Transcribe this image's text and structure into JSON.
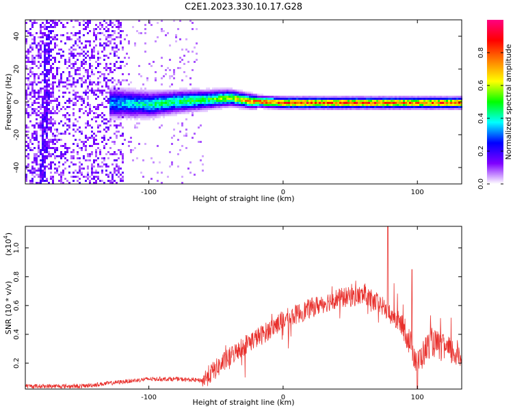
{
  "title": "C2E1.2023.330.10.17.G28",
  "chart_data": [
    {
      "type": "heatmap",
      "name": "spectrogram",
      "xlabel": "Height of straight line (km)",
      "ylabel": "Frequency (Hz)",
      "xlim": [
        -192,
        133
      ],
      "ylim": [
        -50,
        50
      ],
      "xticks": [
        -100,
        0,
        100
      ],
      "yticks": [
        -40,
        -20,
        0,
        20,
        40
      ],
      "colorbar": {
        "label": "Normalized spectral amplitude",
        "range": [
          0,
          1
        ],
        "ticks": [
          "0.0",
          "0.2",
          "0.4",
          "0.6",
          "0.8"
        ],
        "colormap": [
          "#ffffff",
          "#7f00ff",
          "#0000ff",
          "#00ffff",
          "#00ff00",
          "#ffff00",
          "#ff8000",
          "#ff0000",
          "#ff0080"
        ]
      },
      "ridge": [
        {
          "x": -130,
          "freq": 0,
          "amp": 0.35
        },
        {
          "x": -100,
          "freq": -1,
          "amp": 0.45
        },
        {
          "x": -75,
          "freq": 1,
          "amp": 0.5
        },
        {
          "x": -55,
          "freq": 2,
          "amp": 0.55
        },
        {
          "x": -40,
          "freq": 3,
          "amp": 0.65
        },
        {
          "x": -25,
          "freq": 1,
          "amp": 0.8
        },
        {
          "x": 0,
          "freq": 0,
          "amp": 0.9
        },
        {
          "x": 50,
          "freq": 0,
          "amp": 0.9
        },
        {
          "x": 100,
          "freq": 0,
          "amp": 0.85
        },
        {
          "x": 133,
          "freq": 0,
          "amp": 0.9
        }
      ]
    },
    {
      "type": "line",
      "name": "snr",
      "xlabel": "Height of straight line (km)",
      "ylabel": "SNR (10 * v/v)",
      "scale_label": "(x10",
      "scale_exp": "4",
      "scale_close": ")",
      "xlim": [
        -192,
        133
      ],
      "ylim": [
        0.02,
        1.15
      ],
      "xticks": [
        -100,
        0,
        100
      ],
      "yticks": [
        "0.2",
        "0.4",
        "0.6",
        "0.8",
        "1.0"
      ],
      "line_color": "#e8302c",
      "trend": {
        "x": [
          -192,
          -150,
          -120,
          -100,
          -80,
          -60,
          -45,
          -30,
          -15,
          0,
          20,
          40,
          60,
          70,
          80,
          90,
          100,
          110,
          120,
          133
        ],
        "y": [
          0.04,
          0.04,
          0.07,
          0.09,
          0.09,
          0.08,
          0.2,
          0.32,
          0.4,
          0.5,
          0.58,
          0.65,
          0.67,
          0.62,
          0.55,
          0.45,
          0.2,
          0.35,
          0.3,
          0.25
        ]
      },
      "peaks": [
        {
          "x": 78,
          "y": 1.15
        },
        {
          "x": 100,
          "y": 0.02
        },
        {
          "x": 96,
          "y": 0.85
        }
      ]
    }
  ]
}
